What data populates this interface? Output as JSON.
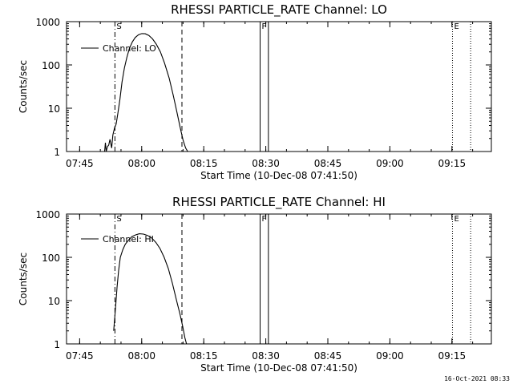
{
  "footer": {
    "timestamp": "16-Oct-2021 08:33"
  },
  "chart_data": [
    {
      "type": "line",
      "title": "RHESSI PARTICLE_RATE Channel: LO",
      "xlabel": "Start Time (10-Dec-08 07:41:50)",
      "ylabel": "Counts/sec",
      "xticks": [
        "07:45",
        "08:00",
        "08:15",
        "08:30",
        "08:45",
        "09:00",
        "09:15"
      ],
      "yticks": [
        "1",
        "10",
        "100",
        "1000"
      ],
      "xlim_minutes_after_start": [
        0,
        102.7
      ],
      "ylim": [
        1,
        1000
      ],
      "yscale": "log",
      "legend": {
        "label": "Channel: LO",
        "position": "top-left"
      },
      "series": [
        {
          "name": "Channel: LO",
          "x": [
            9.2,
            9.4,
            9.6,
            9.9,
            10.2,
            10.5,
            10.9,
            11.2,
            11.6,
            12.0,
            12.4,
            12.9,
            13.4,
            14.0,
            14.6,
            15.2,
            15.9,
            16.6,
            17.4,
            18.2,
            19.0,
            19.9,
            20.8,
            21.7,
            22.7,
            23.7,
            24.8,
            25.8,
            26.7,
            27.5,
            28.2,
            28.8,
            29.3
          ],
          "y": [
            1.0,
            1.6,
            1.0,
            1.3,
            1.4,
            1.9,
            1.2,
            2.4,
            3.5,
            4.3,
            7.5,
            16,
            40,
            85,
            150,
            240,
            340,
            430,
            500,
            530,
            525,
            480,
            400,
            300,
            200,
            110,
            50,
            20,
            8,
            3.5,
            1.8,
            1.2,
            1.0
          ]
        }
      ],
      "markers": [
        {
          "label": "S",
          "x": 11.7,
          "style": "dash-dot"
        },
        {
          "label": "",
          "x": 27.9,
          "style": "dashed"
        },
        {
          "label": "F",
          "x": 46.8,
          "style": "solid"
        },
        {
          "label": "",
          "x": 48.8,
          "style": "solid"
        },
        {
          "label": "E",
          "x": 93.3,
          "style": "dotted"
        },
        {
          "label": "",
          "x": 97.7,
          "style": "dotted"
        }
      ]
    },
    {
      "type": "line",
      "title": "RHESSI PARTICLE_RATE Channel: HI",
      "xlabel": "Start Time (10-Dec-08 07:41:50)",
      "ylabel": "Counts/sec",
      "xticks": [
        "07:45",
        "08:00",
        "08:15",
        "08:30",
        "08:45",
        "09:00",
        "09:15"
      ],
      "yticks": [
        "1",
        "10",
        "100",
        "1000"
      ],
      "xlim_minutes_after_start": [
        0,
        102.7
      ],
      "ylim": [
        1,
        1000
      ],
      "yscale": "log",
      "legend": {
        "label": "Channel: HI",
        "position": "top-left"
      },
      "series": [
        {
          "name": "Channel: HI",
          "x": [
            11.4,
            11.6,
            11.9,
            12.2,
            12.6,
            13.0,
            13.6,
            14.2,
            15.0,
            15.8,
            16.7,
            17.6,
            18.6,
            19.6,
            20.6,
            21.6,
            22.6,
            23.6,
            24.6,
            25.6,
            26.6,
            27.4,
            28.1,
            28.6,
            29.0
          ],
          "y": [
            2.0,
            3.5,
            8,
            20,
            50,
            100,
            150,
            200,
            250,
            300,
            330,
            350,
            345,
            320,
            280,
            220,
            160,
            100,
            55,
            25,
            10,
            5,
            2.5,
            1.4,
            1.0
          ]
        }
      ],
      "markers": [
        {
          "label": "S",
          "x": 11.7,
          "style": "dash-dot"
        },
        {
          "label": "",
          "x": 27.9,
          "style": "dashed"
        },
        {
          "label": "F",
          "x": 46.8,
          "style": "solid"
        },
        {
          "label": "",
          "x": 48.8,
          "style": "solid"
        },
        {
          "label": "E",
          "x": 93.3,
          "style": "dotted"
        },
        {
          "label": "",
          "x": 97.7,
          "style": "dotted"
        }
      ]
    }
  ]
}
